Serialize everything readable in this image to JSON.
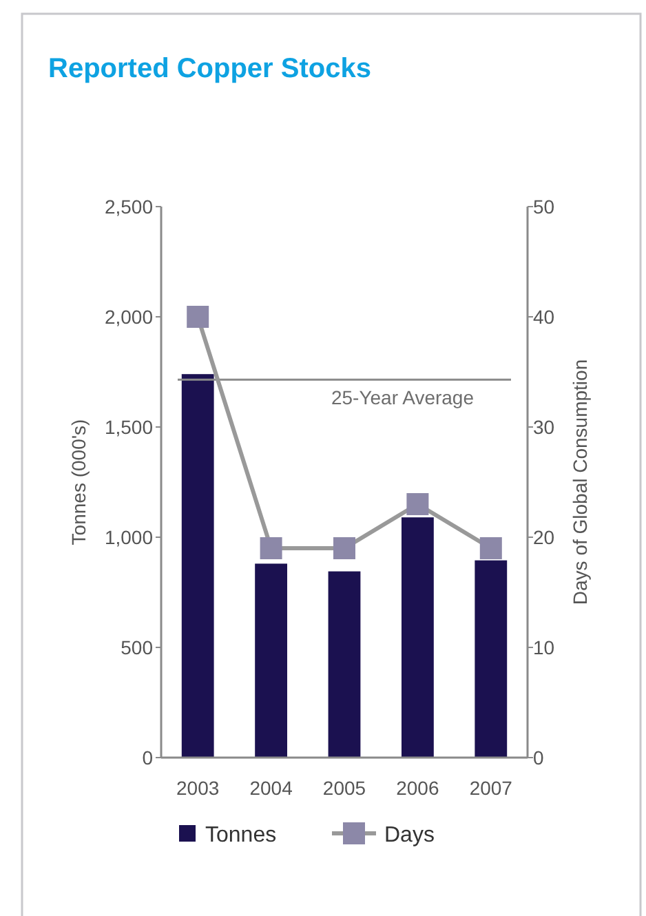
{
  "chart_data": {
    "type": "bar",
    "title": "Reported Copper Stocks",
    "categories": [
      "2003",
      "2004",
      "2005",
      "2006",
      "2007"
    ],
    "series": [
      {
        "name": "Tonnes",
        "color": "#1b1150",
        "values": [
          1740,
          880,
          845,
          1090,
          895
        ]
      },
      {
        "name": "Days",
        "type": "line",
        "axis": "y2",
        "color": "#8c88a8",
        "marker": "square",
        "values": [
          40,
          19,
          19,
          23,
          19
        ]
      }
    ],
    "ylabel": "Tonnes (000's)",
    "y2label": "Days of Global Consumption",
    "ylim": [
      0,
      2500
    ],
    "yticks": [
      0,
      500,
      {
        "value": 1000,
        "label": "1,000"
      },
      {
        "value": 1500,
        "label": "1,500"
      },
      {
        "value": 2000,
        "label": "2,000"
      },
      {
        "value": 2500,
        "label": "2,500"
      }
    ],
    "y2lim": [
      0,
      50
    ],
    "y2ticks": [
      0,
      10,
      20,
      30,
      40,
      50
    ],
    "ref_lines": [
      {
        "axis": "y",
        "value": 1715,
        "label": "25-Year Average",
        "color": "#8a8a8a"
      }
    ],
    "grid": false,
    "legend": "bottom"
  }
}
